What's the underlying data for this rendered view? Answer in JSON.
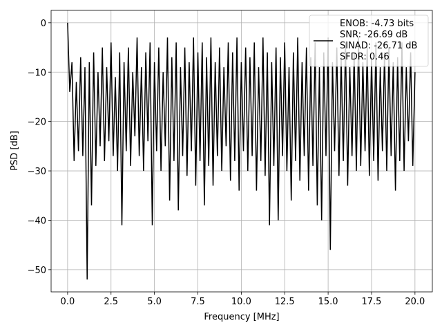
{
  "chart_data": {
    "type": "line",
    "title": "",
    "xlabel": "Frequency [MHz]",
    "ylabel": "PSD [dB]",
    "xlim": [
      -0.95,
      21.0
    ],
    "ylim": [
      -54.5,
      2.5
    ],
    "xticks": [
      0.0,
      2.5,
      5.0,
      7.5,
      10.0,
      12.5,
      15.0,
      17.5,
      20.0
    ],
    "xtick_labels": [
      "0.0",
      "2.5",
      "5.0",
      "7.5",
      "10.0",
      "12.5",
      "15.0",
      "17.5",
      "20.0"
    ],
    "yticks": [
      0,
      -10,
      -20,
      -30,
      -40,
      -50
    ],
    "ytick_labels": [
      "0",
      "−10",
      "−20",
      "−30",
      "−40",
      "−50"
    ],
    "grid": true,
    "legend": {
      "placement": "top-right",
      "entries": [
        "ENOB: -4.73 bits",
        "SNR: -26.69 dB",
        "SINAD: -26.71 dB",
        "SFDR: 0.46"
      ]
    },
    "series": [
      {
        "name": "PSD",
        "color": "#000000",
        "x_start": 0.0,
        "x_step": 0.125,
        "values": [
          0,
          -14,
          -8,
          -28,
          -12,
          -26,
          -7,
          -27,
          -9,
          -52,
          -8,
          -37,
          -6,
          -29,
          -10,
          -25,
          -5,
          -28,
          -9,
          -24,
          -4,
          -27,
          -11,
          -30,
          -6,
          -41,
          -8,
          -26,
          -5,
          -29,
          -10,
          -23,
          -3,
          -27,
          -9,
          -30,
          -6,
          -24,
          -4,
          -41,
          -8,
          -26,
          -5,
          -30,
          -10,
          -25,
          -3,
          -36,
          -7,
          -28,
          -4,
          -38,
          -9,
          -27,
          -5,
          -31,
          -8,
          -26,
          -3,
          -33,
          -6,
          -28,
          -4,
          -37,
          -7,
          -29,
          -3,
          -33,
          -8,
          -27,
          -5,
          -30,
          -9,
          -25,
          -4,
          -32,
          -6,
          -28,
          -3,
          -34,
          -8,
          -26,
          -5,
          -30,
          -7,
          -27,
          -4,
          -34,
          -9,
          -28,
          -3,
          -31,
          -6,
          -41,
          -8,
          -29,
          -5,
          -40,
          -7,
          -27,
          -4,
          -30,
          -9,
          -36,
          -6,
          -28,
          -3,
          -32,
          -8,
          -27,
          -5,
          -34,
          -7,
          -29,
          -4,
          -37,
          -9,
          -40,
          -6,
          -27,
          -3,
          -46,
          -8,
          -26,
          -5,
          -31,
          -7,
          -28,
          -4,
          -33,
          -9,
          -27,
          -6,
          -30,
          -3,
          -29,
          -8,
          -26,
          -5,
          -31,
          -7,
          -28,
          -4,
          -32,
          -9,
          -26,
          -6,
          -30,
          -5,
          -27,
          -8,
          -34,
          -7,
          -28,
          -4,
          -30,
          -9,
          -24,
          -6,
          -29,
          -10
        ]
      }
    ]
  }
}
